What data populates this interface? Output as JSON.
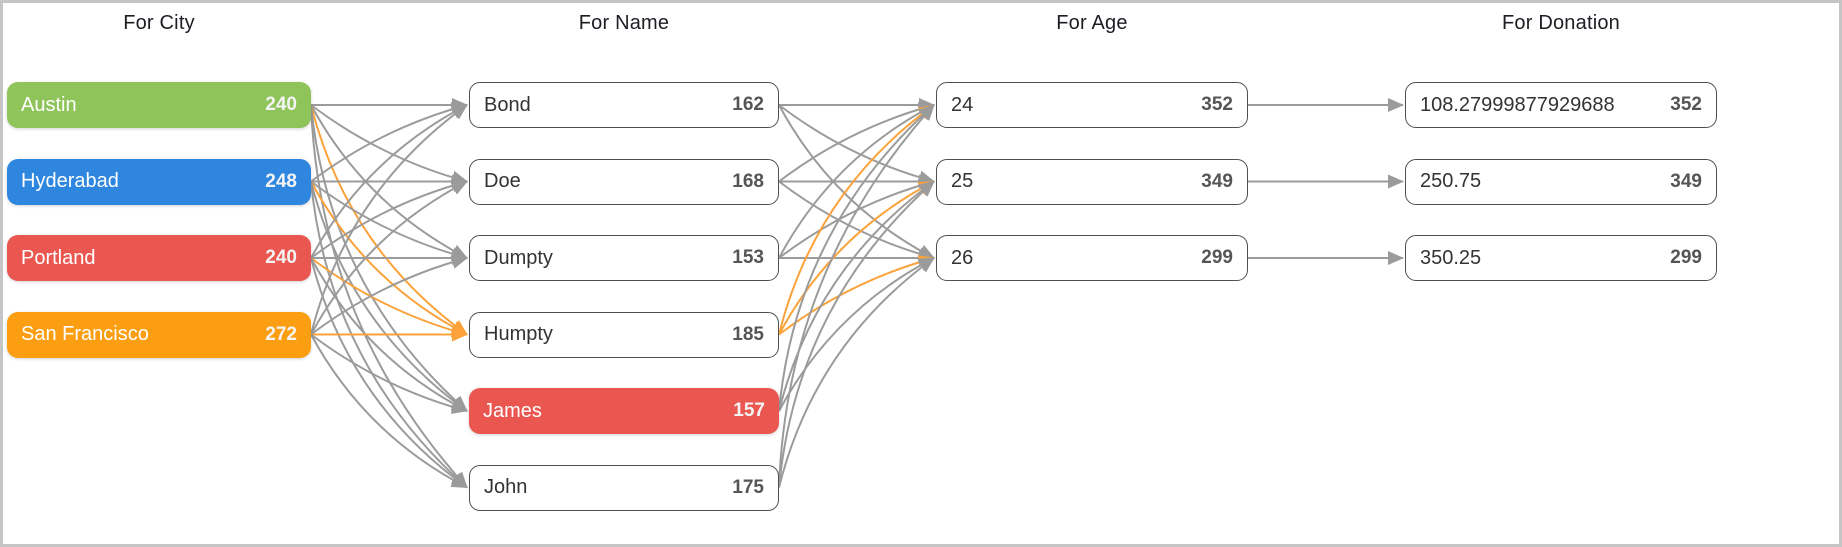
{
  "frame": {
    "background": "#FFFFFF",
    "border_color": "#C5C5C5"
  },
  "link_colors": {
    "normal": "#9B9B9B",
    "highlight": "#FBA23B"
  },
  "columns": [
    {
      "id": "city",
      "header": "For City",
      "nodes": [
        {
          "label": "Austin",
          "count": "240",
          "variant": "filled",
          "fill": "#8FC45A"
        },
        {
          "label": "Hyderabad",
          "count": "248",
          "variant": "filled",
          "fill": "#2E86DE"
        },
        {
          "label": "Portland",
          "count": "240",
          "variant": "filled",
          "fill": "#EA5750"
        },
        {
          "label": "San Francisco",
          "count": "272",
          "variant": "filled",
          "fill": "#FC9E12"
        }
      ]
    },
    {
      "id": "name",
      "header": "For Name",
      "nodes": [
        {
          "label": "Bond",
          "count": "162",
          "variant": "outline"
        },
        {
          "label": "Doe",
          "count": "168",
          "variant": "outline"
        },
        {
          "label": "Dumpty",
          "count": "153",
          "variant": "outline"
        },
        {
          "label": "Humpty",
          "count": "185",
          "variant": "outline"
        },
        {
          "label": "James",
          "count": "157",
          "variant": "filled",
          "fill": "#EA5750"
        },
        {
          "label": "John",
          "count": "175",
          "variant": "outline"
        }
      ]
    },
    {
      "id": "age",
      "header": "For Age",
      "nodes": [
        {
          "label": "24",
          "count": "352",
          "variant": "outline"
        },
        {
          "label": "25",
          "count": "349",
          "variant": "outline"
        },
        {
          "label": "26",
          "count": "299",
          "variant": "outline"
        }
      ]
    },
    {
      "id": "donation",
      "header": "For Donation",
      "nodes": [
        {
          "label": "108.27999877929688",
          "count": "352",
          "variant": "outline"
        },
        {
          "label": "250.75",
          "count": "349",
          "variant": "outline"
        },
        {
          "label": "350.25",
          "count": "299",
          "variant": "outline"
        }
      ]
    }
  ],
  "links": [
    {
      "from": "0.0",
      "to": "1.0",
      "tone": "normal"
    },
    {
      "from": "0.0",
      "to": "1.1",
      "tone": "normal"
    },
    {
      "from": "0.0",
      "to": "1.2",
      "tone": "normal"
    },
    {
      "from": "0.0",
      "to": "1.3",
      "tone": "highlight"
    },
    {
      "from": "0.0",
      "to": "1.4",
      "tone": "normal"
    },
    {
      "from": "0.0",
      "to": "1.5",
      "tone": "normal"
    },
    {
      "from": "0.1",
      "to": "1.0",
      "tone": "normal"
    },
    {
      "from": "0.1",
      "to": "1.1",
      "tone": "normal"
    },
    {
      "from": "0.1",
      "to": "1.2",
      "tone": "normal"
    },
    {
      "from": "0.1",
      "to": "1.3",
      "tone": "highlight"
    },
    {
      "from": "0.1",
      "to": "1.4",
      "tone": "normal"
    },
    {
      "from": "0.1",
      "to": "1.5",
      "tone": "normal"
    },
    {
      "from": "0.2",
      "to": "1.0",
      "tone": "normal"
    },
    {
      "from": "0.2",
      "to": "1.1",
      "tone": "normal"
    },
    {
      "from": "0.2",
      "to": "1.2",
      "tone": "normal"
    },
    {
      "from": "0.2",
      "to": "1.3",
      "tone": "highlight"
    },
    {
      "from": "0.2",
      "to": "1.4",
      "tone": "normal"
    },
    {
      "from": "0.2",
      "to": "1.5",
      "tone": "normal"
    },
    {
      "from": "0.3",
      "to": "1.0",
      "tone": "normal"
    },
    {
      "from": "0.3",
      "to": "1.1",
      "tone": "normal"
    },
    {
      "from": "0.3",
      "to": "1.2",
      "tone": "normal"
    },
    {
      "from": "0.3",
      "to": "1.3",
      "tone": "highlight"
    },
    {
      "from": "0.3",
      "to": "1.4",
      "tone": "normal"
    },
    {
      "from": "0.3",
      "to": "1.5",
      "tone": "normal"
    },
    {
      "from": "1.0",
      "to": "2.0",
      "tone": "normal"
    },
    {
      "from": "1.0",
      "to": "2.1",
      "tone": "normal"
    },
    {
      "from": "1.0",
      "to": "2.2",
      "tone": "normal"
    },
    {
      "from": "1.1",
      "to": "2.0",
      "tone": "normal"
    },
    {
      "from": "1.1",
      "to": "2.1",
      "tone": "normal"
    },
    {
      "from": "1.1",
      "to": "2.2",
      "tone": "normal"
    },
    {
      "from": "1.2",
      "to": "2.0",
      "tone": "normal"
    },
    {
      "from": "1.2",
      "to": "2.1",
      "tone": "normal"
    },
    {
      "from": "1.2",
      "to": "2.2",
      "tone": "normal"
    },
    {
      "from": "1.3",
      "to": "2.0",
      "tone": "highlight"
    },
    {
      "from": "1.3",
      "to": "2.1",
      "tone": "highlight"
    },
    {
      "from": "1.3",
      "to": "2.2",
      "tone": "highlight"
    },
    {
      "from": "1.4",
      "to": "2.0",
      "tone": "normal"
    },
    {
      "from": "1.4",
      "to": "2.1",
      "tone": "normal"
    },
    {
      "from": "1.4",
      "to": "2.2",
      "tone": "normal"
    },
    {
      "from": "1.5",
      "to": "2.0",
      "tone": "normal"
    },
    {
      "from": "1.5",
      "to": "2.1",
      "tone": "normal"
    },
    {
      "from": "1.5",
      "to": "2.2",
      "tone": "normal"
    },
    {
      "from": "2.0",
      "to": "3.0",
      "tone": "normal"
    },
    {
      "from": "2.1",
      "to": "3.1",
      "tone": "normal"
    },
    {
      "from": "2.2",
      "to": "3.2",
      "tone": "normal"
    }
  ]
}
